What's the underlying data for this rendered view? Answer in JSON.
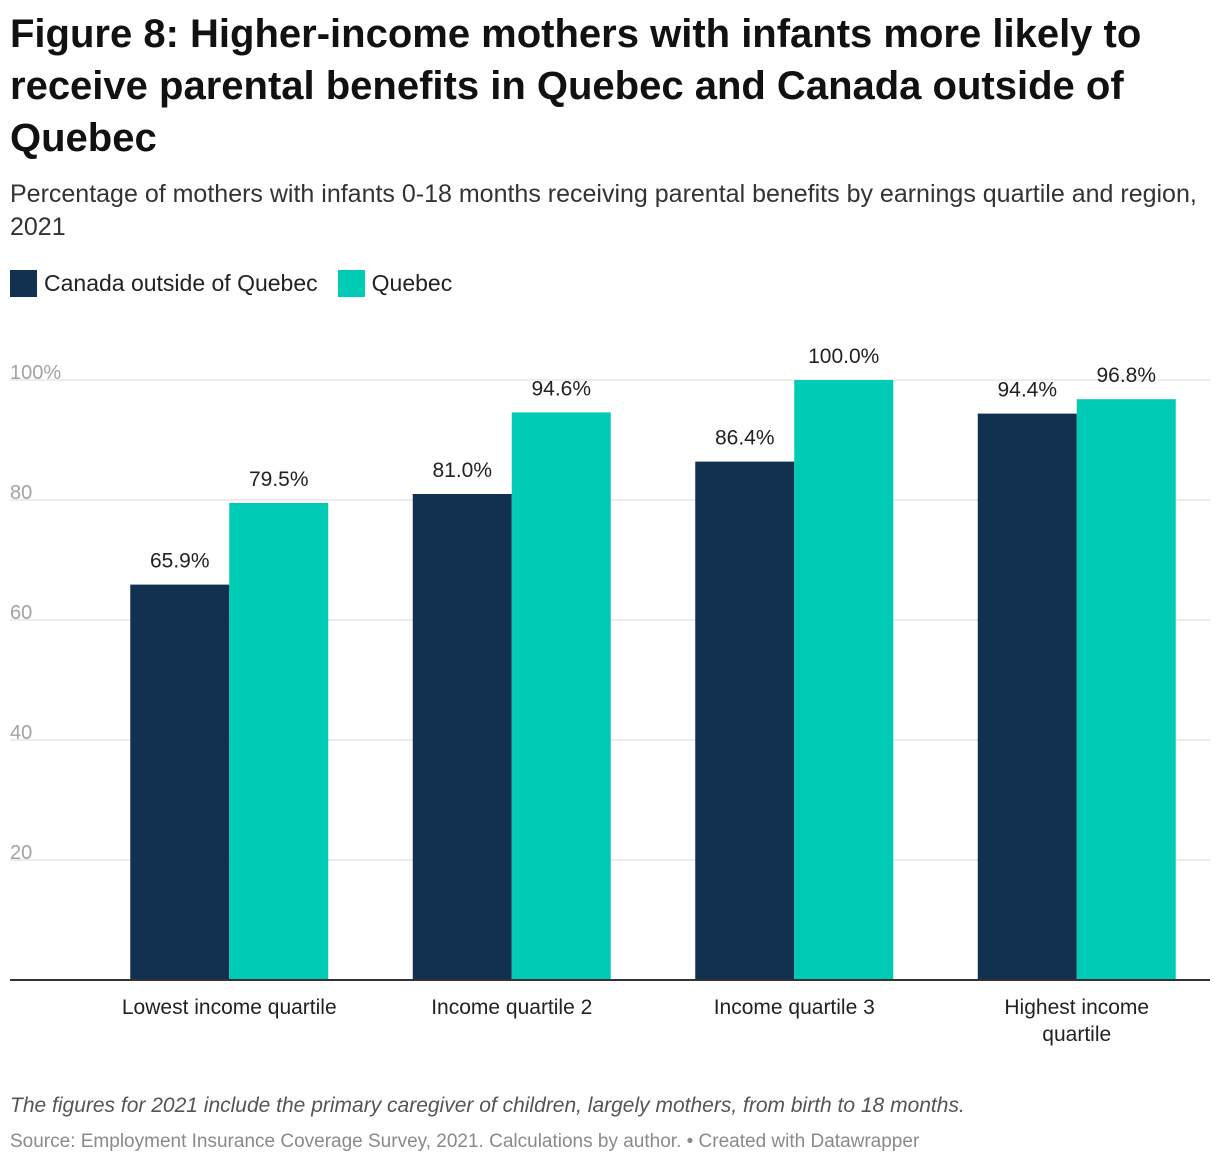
{
  "title": "Figure 8: Higher-income mothers with infants more likely to receive parental benefits in Quebec and Canada outside of Quebec",
  "subtitle": "Percentage of mothers with infants 0-18 months receiving parental benefits by earnings quartile and region, 2021",
  "legend": [
    {
      "label": "Canada outside of Quebec",
      "color": "#12304f"
    },
    {
      "label": "Quebec",
      "color": "#00cbb5"
    }
  ],
  "notes": "The figures for 2021 include the primary caregiver of children, largely mothers, from birth to 18 months.",
  "source": "Source: Employment Insurance Coverage Survey, 2021. Calculations by author. • Created with Datawrapper",
  "chart_data": {
    "type": "bar",
    "title": "Figure 8: Higher-income mothers with infants more likely to receive parental benefits in Quebec and Canada outside of Quebec",
    "xlabel": "",
    "ylabel": "",
    "ylim": [
      0,
      100
    ],
    "yticks": [
      20,
      40,
      60,
      80,
      100
    ],
    "ytick_labels": [
      "20",
      "40",
      "60",
      "80",
      "100%"
    ],
    "grid": true,
    "legend_position": "top-left",
    "categories": [
      [
        "Lowest income quartile"
      ],
      [
        "Income quartile 2"
      ],
      [
        "Income quartile 3"
      ],
      [
        "Highest income",
        "quartile"
      ]
    ],
    "series": [
      {
        "name": "Canada outside of Quebec",
        "color": "#12304f",
        "values": [
          65.9,
          81.0,
          86.4,
          94.4
        ],
        "labels": [
          "65.9%",
          "81.0%",
          "86.4%",
          "94.4%"
        ]
      },
      {
        "name": "Quebec",
        "color": "#00cbb5",
        "values": [
          79.5,
          94.6,
          100.0,
          96.8
        ],
        "labels": [
          "79.5%",
          "94.6%",
          "100.0%",
          "96.8%"
        ]
      }
    ]
  }
}
